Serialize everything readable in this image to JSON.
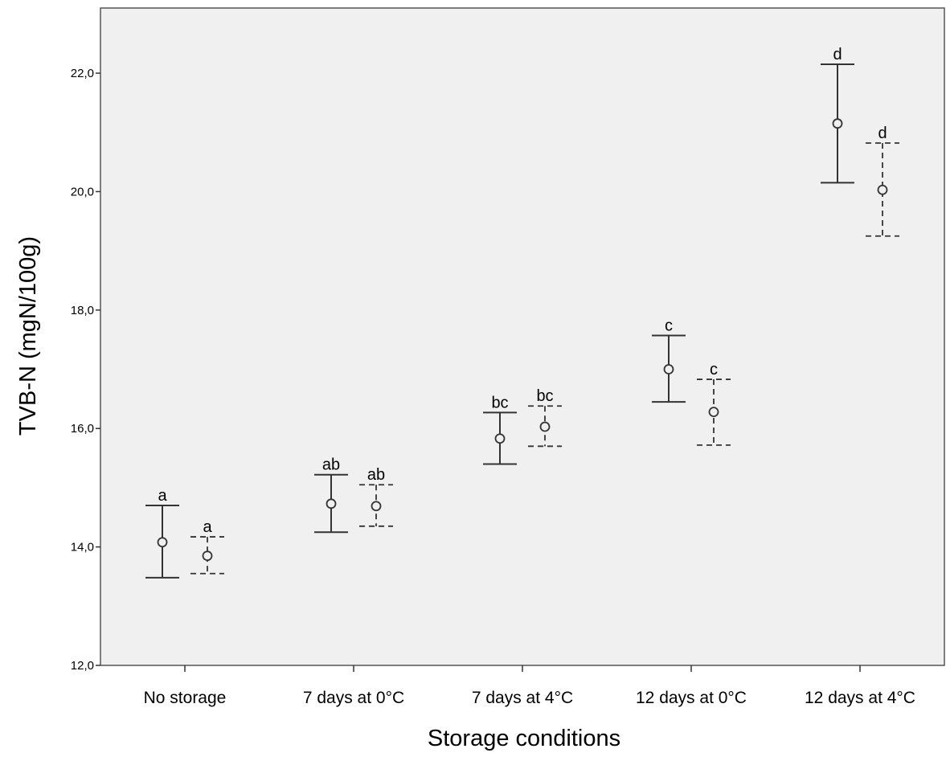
{
  "chart_data": {
    "type": "errorbar",
    "xlabel": "Storage conditions",
    "ylabel": "TVB-N (mgN/100g)",
    "ylim": [
      12.0,
      23.1
    ],
    "yticks": [
      "12,0",
      "14,0",
      "16,0",
      "18,0",
      "20,0",
      "22,0"
    ],
    "categories": [
      "No storage",
      "7 days at 0°C",
      "7 days at 4°C",
      "12 days at 0°C",
      "12 days at 4°C"
    ],
    "series": [
      {
        "line_style": "solid",
        "mean": [
          14.08,
          14.73,
          15.83,
          17.0,
          21.15
        ],
        "lower": [
          13.48,
          14.25,
          15.4,
          16.45,
          20.15
        ],
        "upper": [
          14.7,
          15.22,
          16.27,
          17.57,
          22.15
        ],
        "letters": [
          "a",
          "ab",
          "bc",
          "c",
          "d"
        ]
      },
      {
        "line_style": "dashed",
        "mean": [
          13.85,
          14.69,
          16.03,
          16.28,
          20.03
        ],
        "lower": [
          13.55,
          14.35,
          15.7,
          15.72,
          19.25
        ],
        "upper": [
          14.17,
          15.05,
          16.38,
          16.83,
          20.82
        ],
        "letters": [
          "a",
          "ab",
          "bc",
          "c",
          "d"
        ]
      }
    ],
    "colors": {
      "plot_background": "#f0f0f0",
      "marks": "#333333"
    },
    "grid": false,
    "legend": "none"
  }
}
